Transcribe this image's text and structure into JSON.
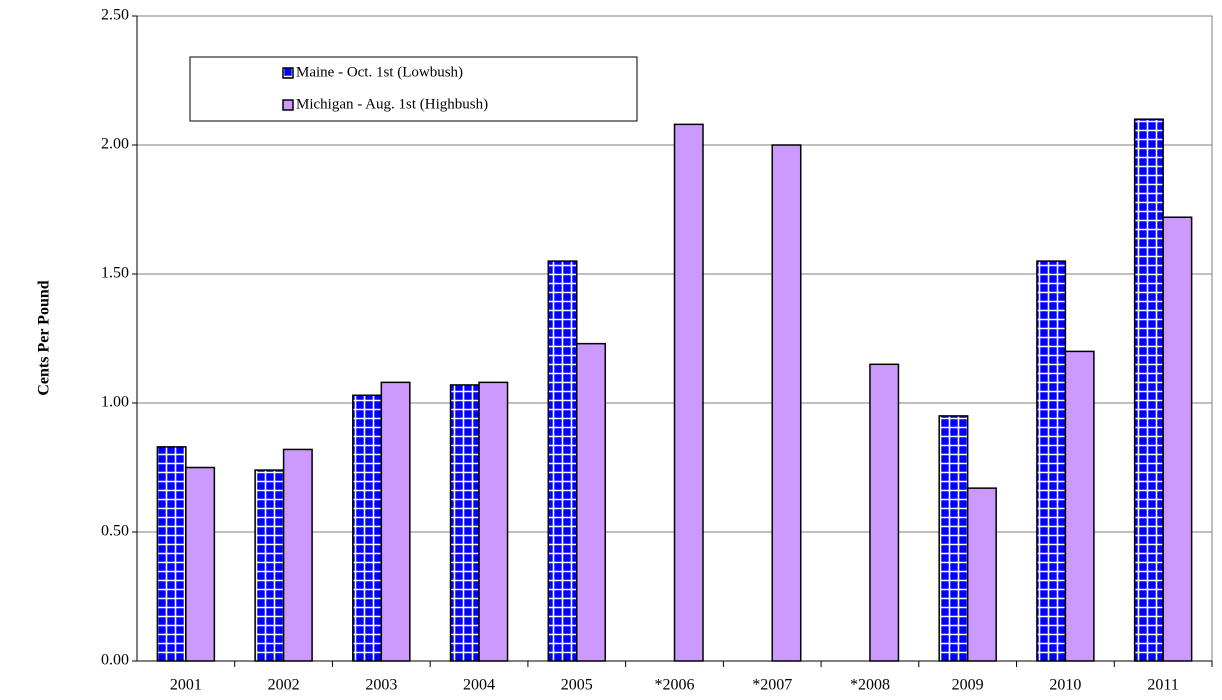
{
  "chart_data": {
    "type": "bar",
    "y_label": "Cents Per Pound",
    "categories": [
      "2001",
      "2002",
      "2003",
      "2004",
      "2005",
      "*2006",
      "*2007",
      "*2008",
      "2009",
      "2010",
      "2011"
    ],
    "series": [
      {
        "name": "Maine - Oct. 1st (Lowbush)",
        "color": "#0000ff",
        "pattern": "grid",
        "values": [
          0.83,
          0.74,
          1.03,
          1.07,
          1.55,
          null,
          null,
          null,
          0.95,
          1.55,
          2.1
        ]
      },
      {
        "name": "Michigan - Aug. 1st (Highbush)",
        "color": "#cc99ff",
        "values": [
          0.75,
          0.82,
          1.08,
          1.08,
          1.23,
          2.08,
          2.0,
          1.15,
          0.67,
          1.2,
          1.72
        ]
      }
    ],
    "ylim": [
      0,
      2.5
    ],
    "yticks": [
      {
        "value": 0,
        "label": "0.00"
      },
      {
        "value": 0.5,
        "label": "0.50"
      },
      {
        "value": 1,
        "label": "1.00"
      },
      {
        "value": 1.5,
        "label": "1.50"
      },
      {
        "value": 2,
        "label": "2.00"
      },
      {
        "value": 2.5,
        "label": "2.50"
      }
    ],
    "grid": true,
    "legend": "top-left"
  }
}
